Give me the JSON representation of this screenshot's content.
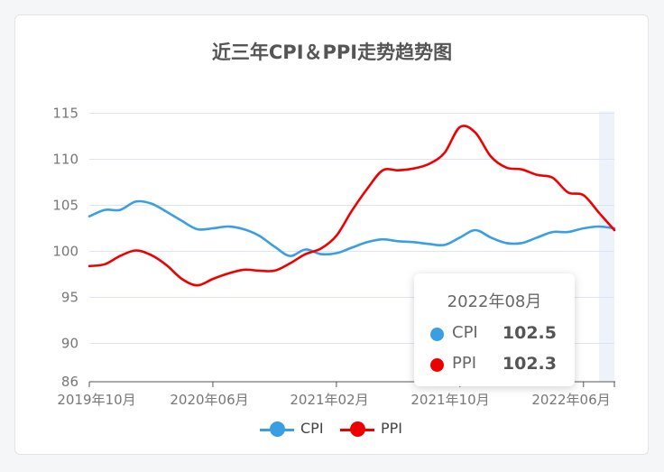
{
  "chart_data": {
    "type": "line",
    "title": "近三年CPI＆PPI走势趋势图",
    "xlabel": "",
    "ylabel": "",
    "x_tick_labels": [
      "2019年10月",
      "2020年06月",
      "2021年02月",
      "2021年10月",
      "2022年06月"
    ],
    "x_start": "2019-10",
    "x_end": "2022-08",
    "ylim": [
      86,
      115
    ],
    "y_ticks": [
      86,
      90,
      95,
      100,
      105,
      110,
      115
    ],
    "grid": true,
    "legend_position": "bottom-center",
    "colors": {
      "CPI": "#3a9ee2",
      "PPI": "#ee0000",
      "highlight": "#eef3fb",
      "grid": "#e0e4f2",
      "axis": "#555555"
    },
    "series": [
      {
        "name": "CPI",
        "values": [
          103.8,
          104.5,
          104.5,
          105.4,
          105.2,
          104.3,
          103.3,
          102.4,
          102.5,
          102.7,
          102.4,
          101.7,
          100.5,
          99.5,
          100.2,
          99.7,
          99.8,
          100.4,
          101.0,
          101.3,
          101.1,
          101.0,
          100.8,
          100.7,
          101.5,
          102.3,
          101.5,
          100.9,
          100.9,
          101.5,
          102.1,
          102.1,
          102.5,
          102.7,
          102.5
        ]
      },
      {
        "name": "PPI",
        "values": [
          98.4,
          98.6,
          99.5,
          100.1,
          99.6,
          98.5,
          97.0,
          96.3,
          97.0,
          97.6,
          98.0,
          97.9,
          97.9,
          98.7,
          99.7,
          100.3,
          101.7,
          104.4,
          106.8,
          108.8,
          108.8,
          109.0,
          109.5,
          110.7,
          113.5,
          112.9,
          110.3,
          109.1,
          108.9,
          108.3,
          108.0,
          106.4,
          106.1,
          104.2,
          102.3
        ]
      }
    ]
  },
  "tooltip": {
    "title": "2022年08月",
    "rows": [
      {
        "name": "CPI",
        "value": "102.5"
      },
      {
        "name": "PPI",
        "value": "102.3"
      }
    ]
  },
  "legend": [
    {
      "name": "CPI"
    },
    {
      "name": "PPI"
    }
  ]
}
